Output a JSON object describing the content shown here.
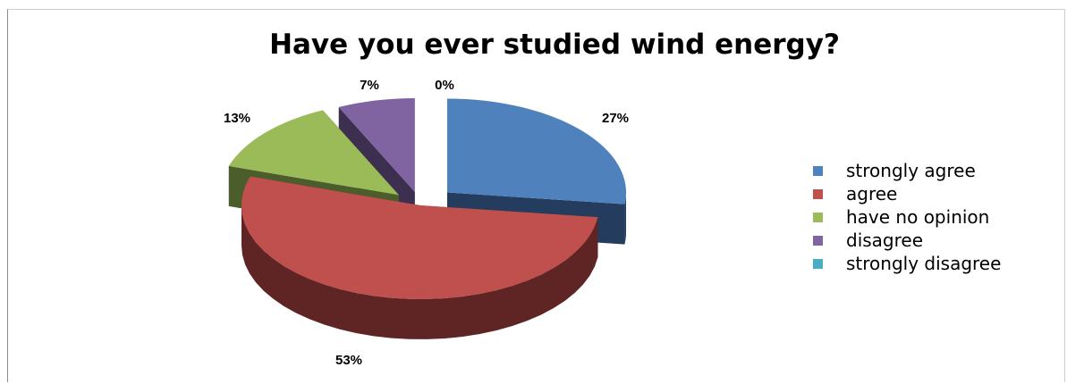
{
  "chart_data": {
    "type": "pie",
    "title": "Have you ever studied wind energy?",
    "categories": [
      "strongly agree",
      "agree",
      "have no opinion",
      "disagree",
      "strongly disagree"
    ],
    "values": [
      27,
      53,
      13,
      7,
      0
    ],
    "labels": [
      "27%",
      "53%",
      "13%",
      "7%",
      "0%"
    ],
    "colors": [
      "#4F81BD",
      "#C0504D",
      "#9BBB59",
      "#8064A2",
      "#4BACC6"
    ],
    "side_colors": [
      "#243D5E",
      "#5E2524",
      "#4C5D2C",
      "#3D2F50",
      "#245564"
    ],
    "style": "exploded 3D pie",
    "legend_position": "right"
  }
}
